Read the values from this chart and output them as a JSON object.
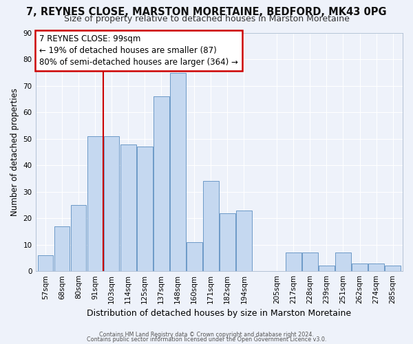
{
  "title1": "7, REYNES CLOSE, MARSTON MORETAINE, BEDFORD, MK43 0PG",
  "title2": "Size of property relative to detached houses in Marston Moretaine",
  "xlabel": "Distribution of detached houses by size in Marston Moretaine",
  "ylabel": "Number of detached properties",
  "bin_labels": [
    "57sqm",
    "68sqm",
    "80sqm",
    "91sqm",
    "103sqm",
    "114sqm",
    "125sqm",
    "137sqm",
    "148sqm",
    "160sqm",
    "171sqm",
    "182sqm",
    "194sqm",
    "205sqm",
    "217sqm",
    "228sqm",
    "239sqm",
    "251sqm",
    "262sqm",
    "274sqm",
    "285sqm"
  ],
  "bar_values": [
    6,
    17,
    25,
    51,
    51,
    48,
    47,
    66,
    75,
    11,
    34,
    22,
    23,
    0,
    7,
    7,
    2,
    7,
    3,
    3,
    2
  ],
  "bar_color": "#c5d8f0",
  "bar_edge_color": "#5b8dc0",
  "vline_color": "#cc0000",
  "annotation_title": "7 REYNES CLOSE: 99sqm",
  "annotation_line1": "← 19% of detached houses are smaller (87)",
  "annotation_line2": "80% of semi-detached houses are larger (364) →",
  "annotation_box_color": "#cc0000",
  "ylim": [
    0,
    90
  ],
  "yticks": [
    0,
    10,
    20,
    30,
    40,
    50,
    60,
    70,
    80,
    90
  ],
  "footer1": "Contains HM Land Registry data © Crown copyright and database right 2024.",
  "footer2": "Contains public sector information licensed under the Open Government Licence v3.0.",
  "bg_color": "#eef2fa",
  "grid_color": "#ffffff",
  "title1_fontsize": 10.5,
  "title2_fontsize": 9.0,
  "xlabel_fontsize": 9.0,
  "ylabel_fontsize": 8.5,
  "annotation_fontsize": 8.5,
  "tick_fontsize": 7.5
}
